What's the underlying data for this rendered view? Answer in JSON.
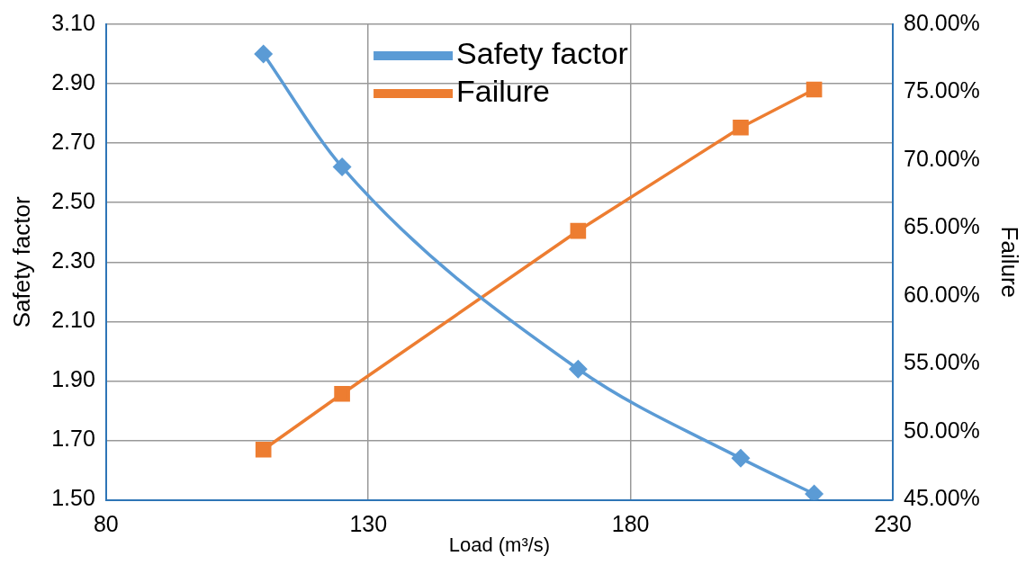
{
  "chart_data": {
    "type": "line",
    "xlabel": "Load (m³/s)",
    "ylabel": "Safety factor",
    "y2label": "Failure",
    "xlim": [
      80,
      230
    ],
    "xticks": [
      80,
      130,
      180,
      230
    ],
    "ylim": [
      1.5,
      3.1
    ],
    "yticks": [
      {
        "value": 1.5,
        "label": "1.50"
      },
      {
        "value": 1.7,
        "label": "1.70"
      },
      {
        "value": 1.9,
        "label": "1.90"
      },
      {
        "value": 2.1,
        "label": "2.10"
      },
      {
        "value": 2.3,
        "label": "2.30"
      },
      {
        "value": 2.5,
        "label": "2.50"
      },
      {
        "value": 2.7,
        "label": "2.70"
      },
      {
        "value": 2.9,
        "label": "2.90"
      },
      {
        "value": 3.1,
        "label": "3.10"
      }
    ],
    "y2lim": [
      45,
      80
    ],
    "y2ticks": [
      {
        "value": 45,
        "label": "45.00%"
      },
      {
        "value": 50,
        "label": "50.00%"
      },
      {
        "value": 55,
        "label": "55.00%"
      },
      {
        "value": 60,
        "label": "60.00%"
      },
      {
        "value": 65,
        "label": "65.00%"
      },
      {
        "value": 70,
        "label": "70.00%"
      },
      {
        "value": 75,
        "label": "75.00%"
      },
      {
        "value": 80,
        "label": "80.00%"
      }
    ],
    "grid": true,
    "legend": "top",
    "line_style": "solid",
    "series": [
      {
        "name": "Safety factor",
        "color": "#5b9bd5",
        "marker": "diamond",
        "x": [
          110,
          125,
          170,
          201,
          215
        ],
        "values": [
          3.0,
          2.62,
          1.94,
          1.64,
          1.52
        ]
      },
      {
        "name": "Failure",
        "color": "#ed7d31",
        "marker": "square",
        "axis": "y2",
        "x": [
          110,
          125,
          170,
          201,
          215
        ],
        "values": [
          48.7,
          52.8,
          64.8,
          72.4,
          75.2
        ]
      }
    ]
  }
}
